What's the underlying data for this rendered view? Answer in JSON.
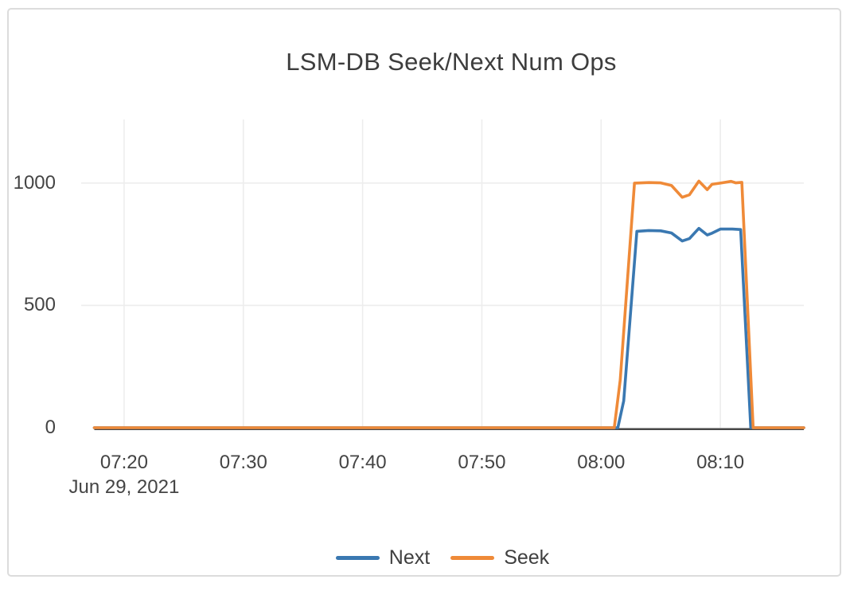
{
  "chart_data": {
    "type": "line",
    "title": "LSM-DB Seek/Next Num Ops",
    "legend_position": "bottom-center",
    "grid": true,
    "x_axis": {
      "date_label": "Jun 29, 2021",
      "range_minutes": [
        436.4,
        497
      ],
      "ticks": [
        {
          "label": "07:20",
          "t": 440
        },
        {
          "label": "07:30",
          "t": 450
        },
        {
          "label": "07:40",
          "t": 460
        },
        {
          "label": "07:50",
          "t": 470
        },
        {
          "label": "08:00",
          "t": 480
        },
        {
          "label": "08:10",
          "t": 490
        }
      ]
    },
    "y_axis": {
      "range": [
        0,
        1260
      ],
      "ticks": [
        {
          "label": "0",
          "v": 0
        },
        {
          "label": "500",
          "v": 500
        },
        {
          "label": "1000",
          "v": 1000
        }
      ]
    },
    "series": [
      {
        "name": "Next",
        "color": "#3a78b1",
        "points": [
          [
            437.5,
            0
          ],
          [
            440,
            0
          ],
          [
            445,
            0
          ],
          [
            450,
            0
          ],
          [
            455,
            0
          ],
          [
            460,
            0
          ],
          [
            465,
            0
          ],
          [
            470,
            0
          ],
          [
            475,
            0
          ],
          [
            480,
            0
          ],
          [
            481.4,
            0
          ],
          [
            481.9,
            110
          ],
          [
            483,
            803
          ],
          [
            484,
            806
          ],
          [
            485,
            805
          ],
          [
            485.9,
            796
          ],
          [
            486.8,
            763
          ],
          [
            487.4,
            773
          ],
          [
            488.2,
            815
          ],
          [
            488.9,
            788
          ],
          [
            489.3,
            795
          ],
          [
            490,
            812
          ],
          [
            491,
            812
          ],
          [
            491.7,
            810
          ],
          [
            492.55,
            0
          ],
          [
            493.5,
            0
          ],
          [
            495,
            0
          ],
          [
            497,
            0
          ]
        ]
      },
      {
        "name": "Seek",
        "color": "#ef8a38",
        "points": [
          [
            437.5,
            0
          ],
          [
            440,
            0
          ],
          [
            445,
            0
          ],
          [
            450,
            0
          ],
          [
            455,
            0
          ],
          [
            460,
            0
          ],
          [
            465,
            0
          ],
          [
            470,
            0
          ],
          [
            475,
            0
          ],
          [
            480,
            0
          ],
          [
            481.1,
            0
          ],
          [
            481.6,
            195
          ],
          [
            482.8,
            1000
          ],
          [
            484,
            1002
          ],
          [
            485,
            1001
          ],
          [
            485.9,
            990
          ],
          [
            486.8,
            942
          ],
          [
            487.4,
            952
          ],
          [
            488.2,
            1008
          ],
          [
            488.9,
            973
          ],
          [
            489.3,
            995
          ],
          [
            490,
            1000
          ],
          [
            490.9,
            1007
          ],
          [
            491.3,
            1001
          ],
          [
            491.8,
            1003
          ],
          [
            492.75,
            0
          ],
          [
            493.5,
            0
          ],
          [
            495,
            0
          ],
          [
            497,
            0
          ]
        ]
      }
    ],
    "colors": {
      "grid": "#ededed",
      "zeroline": "#474747",
      "text": "#444444",
      "border": "#dcdcdc"
    }
  }
}
